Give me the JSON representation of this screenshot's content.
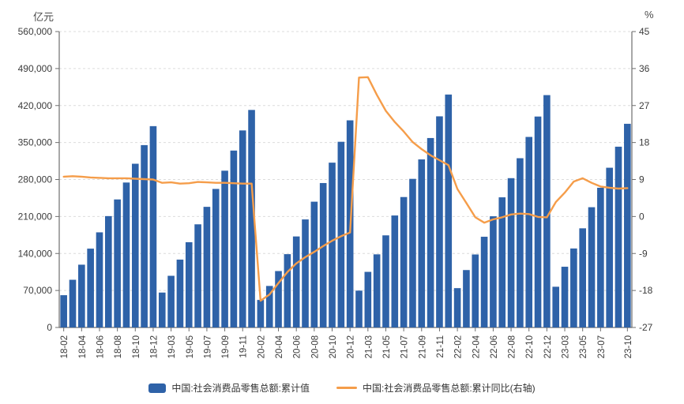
{
  "axes": {
    "left_unit": "亿元",
    "right_unit": "%"
  },
  "legend": {
    "bar_label": "中国:社会消费品零售总额:累计值",
    "line_label": "中国:社会消费品零售总额:累计同比(右轴)"
  },
  "colors": {
    "bar": "#2e62a8",
    "line": "#f59d4a",
    "text": "#3c3c3c",
    "axis": "#6e6e6e",
    "grid": "#dcdcdc"
  },
  "chart_data": {
    "type": "combo",
    "sub_types": [
      "bar",
      "line"
    ],
    "title": "",
    "legend_position": "bottom",
    "grid": {
      "horizontal": true,
      "style": "dashed"
    },
    "categories": [
      "18-02",
      "18-03",
      "18-04",
      "18-05",
      "18-06",
      "18-07",
      "18-08",
      "18-09",
      "18-10",
      "18-11",
      "18-12",
      "19-02",
      "19-03",
      "19-04",
      "19-05",
      "19-06",
      "19-07",
      "19-08",
      "19-09",
      "19-10",
      "19-11",
      "19-12",
      "20-02",
      "20-03",
      "20-04",
      "20-05",
      "20-06",
      "20-07",
      "20-08",
      "20-09",
      "20-10",
      "20-11",
      "20-12",
      "21-02",
      "21-03",
      "21-04",
      "21-05",
      "21-06",
      "21-07",
      "21-08",
      "21-09",
      "21-10",
      "21-11",
      "21-12",
      "22-02",
      "22-03",
      "22-04",
      "22-05",
      "22-06",
      "22-07",
      "22-08",
      "22-09",
      "22-10",
      "22-11",
      "22-12",
      "23-02",
      "23-03",
      "23-04",
      "23-05",
      "23-06",
      "23-07",
      "23-08",
      "23-09",
      "23-10"
    ],
    "x_tick_labels": [
      "18-02",
      "18-04",
      "18-06",
      "18-08",
      "18-10",
      "18-12",
      "19-03",
      "19-05",
      "19-07",
      "19-09",
      "19-11",
      "20-02",
      "20-04",
      "20-06",
      "20-08",
      "20-10",
      "20-12",
      "21-03",
      "21-05",
      "21-07",
      "21-09",
      "21-11",
      "22-02",
      "22-04",
      "22-06",
      "22-08",
      "22-10",
      "22-12",
      "23-03",
      "23-05",
      "23-07",
      "23-10"
    ],
    "series": [
      {
        "name": "中国:社会消费品零售总额:累计值",
        "type": "bar",
        "axis": "left",
        "unit": "亿元",
        "values": [
          61082,
          90275,
          118817,
          149176,
          180018,
          210752,
          242294,
          274299,
          309834,
          345093,
          380987,
          66064,
          97790,
          128376,
          161332,
          195210,
          228283,
          262179,
          296674,
          334778,
          372872,
          411649,
          52130,
          78580,
          106758,
          138730,
          172256,
          204459,
          238029,
          273324,
          311901,
          351415,
          391981,
          69737,
          105221,
          138373,
          174319,
          211904,
          246829,
          281224,
          318057,
          358511,
          399554,
          440823,
          74426,
          108659,
          138142,
          171689,
          210432,
          246302,
          282560,
          320305,
          360575,
          399190,
          439733,
          77067,
          114922,
          149482,
          187636,
          227588,
          264348,
          302281,
          342107,
          385440
        ]
      },
      {
        "name": "中国:社会消费品零售总额:累计同比(右轴)",
        "type": "line",
        "axis": "right",
        "unit": "%",
        "values": [
          9.7,
          9.8,
          9.7,
          9.5,
          9.4,
          9.3,
          9.3,
          9.3,
          9.2,
          9.1,
          9.0,
          8.2,
          8.3,
          8.0,
          8.1,
          8.4,
          8.3,
          8.2,
          8.2,
          8.1,
          8.0,
          8.0,
          -20.5,
          -19.0,
          -16.2,
          -13.5,
          -11.4,
          -9.9,
          -8.6,
          -7.2,
          -5.9,
          -4.8,
          -3.9,
          33.8,
          33.9,
          29.6,
          25.7,
          23.0,
          20.7,
          18.1,
          16.4,
          14.9,
          13.7,
          12.5,
          6.7,
          3.3,
          -0.2,
          -1.5,
          -0.7,
          -0.2,
          0.5,
          0.7,
          0.6,
          -0.1,
          -0.2,
          3.5,
          5.8,
          8.5,
          9.3,
          8.2,
          7.3,
          7.0,
          6.8,
          6.9
        ]
      }
    ],
    "left_axis": {
      "name": "亿元",
      "min": 0,
      "max": 560000,
      "step": 70000,
      "tick_labels": [
        "0",
        "70,000",
        "140,000",
        "210,000",
        "280,000",
        "350,000",
        "420,000",
        "490,000",
        "560,000"
      ]
    },
    "right_axis": {
      "name": "%",
      "min": -27,
      "max": 45,
      "step": 9,
      "tick_labels": [
        "-27",
        "-18",
        "-9",
        "0",
        "9",
        "18",
        "27",
        "36",
        "45"
      ]
    }
  }
}
